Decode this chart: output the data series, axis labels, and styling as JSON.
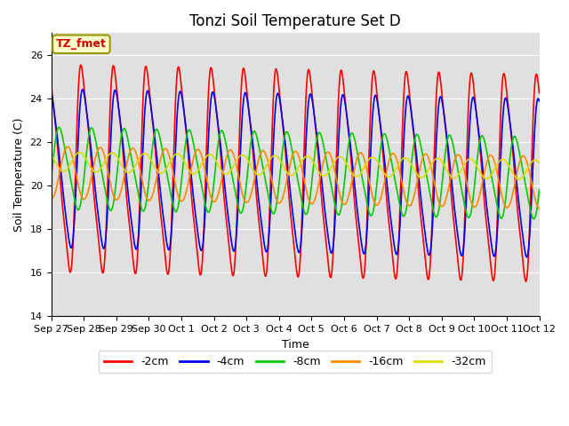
{
  "title": "Tonzi Soil Temperature Set D",
  "xlabel": "Time",
  "ylabel": "Soil Temperature (C)",
  "ylim": [
    14,
    27
  ],
  "yticks": [
    14,
    16,
    18,
    20,
    22,
    24,
    26
  ],
  "tick_labels": [
    "Sep 27",
    "Sep 28",
    "Sep 29",
    "Sep 30",
    "Oct 1",
    "Oct 2",
    "Oct 3",
    "Oct 4",
    "Oct 5",
    "Oct 6",
    "Oct 7",
    "Oct 8",
    "Oct 9",
    "Oct 10",
    "Oct 11",
    "Oct 12"
  ],
  "colors": {
    "-2cm": "#ff0000",
    "-4cm": "#0000ee",
    "-8cm": "#00cc00",
    "-16cm": "#ff8800",
    "-32cm": "#dddd00"
  },
  "annotation_text": "TZ_fmet",
  "background_color": "#e0e0e0",
  "figure_background": "#ffffff",
  "title_fontsize": 12,
  "axis_fontsize": 9,
  "tick_fontsize": 8
}
